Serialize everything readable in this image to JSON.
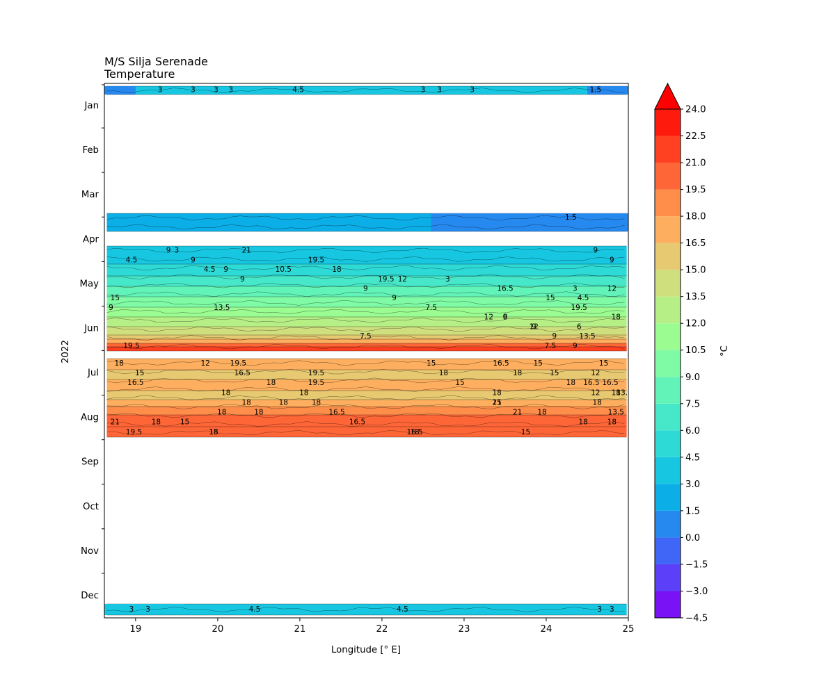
{
  "chart_data": {
    "type": "heatmap",
    "title": "M/S Silja Serenade",
    "subtitle": "Temperature",
    "xlabel": "Longitude [° E]",
    "ylabel": "2022",
    "xlim": [
      18.62,
      25.0
    ],
    "x_ticks": [
      "19",
      "20",
      "21",
      "22",
      "23",
      "24",
      "25"
    ],
    "x_tick_values": [
      19,
      20,
      21,
      22,
      23,
      24,
      25
    ],
    "y_ticks": [
      "Jan",
      "Feb",
      "Mar",
      "Apr",
      "May",
      "Jun",
      "Jul",
      "Aug",
      "Sep",
      "Oct",
      "Nov",
      "Dec"
    ],
    "y_axis": "month of year, January at top",
    "colorbar": {
      "label": "°C",
      "ticks": [
        "−4.5",
        "−3.0",
        "−1.5",
        "0.0",
        "1.5",
        "3.0",
        "4.5",
        "6.0",
        "7.5",
        "9.0",
        "10.5",
        "12.0",
        "13.5",
        "15.0",
        "16.5",
        "18.0",
        "19.5",
        "21.0",
        "22.5",
        "24.0"
      ],
      "levels": [
        -4.5,
        -3.0,
        -1.5,
        0.0,
        1.5,
        3.0,
        4.5,
        6.0,
        7.5,
        9.0,
        10.5,
        12.0,
        13.5,
        15.0,
        16.5,
        18.0,
        19.5,
        21.0,
        22.5,
        24.0
      ],
      "colors": [
        "#7a12f6",
        "#5c3ff8",
        "#4066f8",
        "#2689ef",
        "#0caee7",
        "#17c7e1",
        "#2edad6",
        "#47e8c9",
        "#62f3b8",
        "#7efba4",
        "#9bfc92",
        "#b6ef86",
        "#d0df7e",
        "#e7c971",
        "#fdaf5f",
        "#ff8e4b",
        "#ff6637",
        "#ff4122",
        "#ff1a0e"
      ],
      "extend": "max",
      "extend_color": "#ff0000"
    },
    "bands": [
      {
        "period": "early January",
        "range_c": [
          1.5,
          4.5
        ],
        "labels": [
          {
            "text": "3",
            "lon": 19.3
          },
          {
            "text": "3",
            "lon": 19.7
          },
          {
            "text": "3",
            "lon": 19.98
          },
          {
            "text": "3",
            "lon": 20.16
          },
          {
            "text": "4.5",
            "lon": 20.98
          },
          {
            "text": "3",
            "lon": 22.5
          },
          {
            "text": "3",
            "lon": 22.7
          },
          {
            "text": "3",
            "lon": 23.1
          },
          {
            "text": "1.5",
            "lon": 24.6
          }
        ]
      },
      {
        "period": "late March – early April",
        "range_c": [
          0.0,
          3.0
        ],
        "labels": [
          {
            "text": "1.5",
            "lon": 24.3
          }
        ]
      },
      {
        "period": "mid April – mid June",
        "range_c": [
          3.0,
          21.0
        ],
        "labels": [
          {
            "text": "3",
            "lon": 19.5
          },
          {
            "text": "4.5",
            "lon": 18.95
          },
          {
            "text": "4.5",
            "lon": 19.9
          },
          {
            "text": "3",
            "lon": 22.8
          },
          {
            "text": "3",
            "lon": 24.35
          },
          {
            "text": "4.5",
            "lon": 24.45
          },
          {
            "text": "9",
            "lon": 18.7
          },
          {
            "text": "6",
            "lon": 23.5
          },
          {
            "text": "6",
            "lon": 24.4
          },
          {
            "text": "7.5",
            "lon": 21.8
          },
          {
            "text": "7.5",
            "lon": 24.05
          },
          {
            "text": "9",
            "lon": 19.4
          },
          {
            "text": "9",
            "lon": 19.7
          },
          {
            "text": "9",
            "lon": 20.1
          },
          {
            "text": "9",
            "lon": 20.3
          },
          {
            "text": "9",
            "lon": 21.8
          },
          {
            "text": "9",
            "lon": 22.15
          },
          {
            "text": "7.5",
            "lon": 22.6
          },
          {
            "text": "9",
            "lon": 23.5
          },
          {
            "text": "9",
            "lon": 23.85
          },
          {
            "text": "9",
            "lon": 24.1
          },
          {
            "text": "9",
            "lon": 24.35
          },
          {
            "text": "9",
            "lon": 24.6
          },
          {
            "text": "9",
            "lon": 24.8
          },
          {
            "text": "10.5",
            "lon": 20.8
          },
          {
            "text": "12",
            "lon": 22.25
          },
          {
            "text": "12",
            "lon": 24.8
          },
          {
            "text": "15",
            "lon": 18.75
          },
          {
            "text": "13.5",
            "lon": 20.05
          },
          {
            "text": "12",
            "lon": 23.3
          },
          {
            "text": "12",
            "lon": 23.85
          },
          {
            "text": "13.5",
            "lon": 24.5
          },
          {
            "text": "19.5",
            "lon": 18.95
          },
          {
            "text": "21",
            "lon": 20.35
          },
          {
            "text": "19.5",
            "lon": 21.2
          },
          {
            "text": "18",
            "lon": 21.45
          },
          {
            "text": "19.5",
            "lon": 22.05
          },
          {
            "text": "16.5",
            "lon": 23.5
          },
          {
            "text": "15",
            "lon": 24.05
          },
          {
            "text": "19.5",
            "lon": 24.4
          },
          {
            "text": "18",
            "lon": 24.85
          }
        ]
      },
      {
        "period": "late June – mid August",
        "range_c": [
          12.0,
          22.5
        ],
        "labels": [
          {
            "text": "18",
            "lon": 18.8
          },
          {
            "text": "15",
            "lon": 19.05
          },
          {
            "text": "16.5",
            "lon": 19.0
          },
          {
            "text": "18",
            "lon": 20.1
          },
          {
            "text": "18",
            "lon": 20.35
          },
          {
            "text": "18",
            "lon": 20.5
          },
          {
            "text": "15",
            "lon": 19.6
          },
          {
            "text": "15",
            "lon": 19.95
          },
          {
            "text": "12",
            "lon": 19.85
          },
          {
            "text": "16.5",
            "lon": 20.3
          },
          {
            "text": "18",
            "lon": 20.65
          },
          {
            "text": "18",
            "lon": 21.05
          },
          {
            "text": "18",
            "lon": 21.2
          },
          {
            "text": "16.5",
            "lon": 21.45
          },
          {
            "text": "16.5",
            "lon": 21.7
          },
          {
            "text": "18",
            "lon": 22.4
          },
          {
            "text": "15",
            "lon": 22.6
          },
          {
            "text": "18",
            "lon": 22.75
          },
          {
            "text": "15",
            "lon": 22.95
          },
          {
            "text": "18",
            "lon": 23.4
          },
          {
            "text": "15",
            "lon": 23.4
          },
          {
            "text": "18",
            "lon": 23.95
          },
          {
            "text": "18",
            "lon": 24.45
          },
          {
            "text": "15",
            "lon": 23.75
          },
          {
            "text": "15",
            "lon": 23.9
          },
          {
            "text": "15",
            "lon": 24.1
          },
          {
            "text": "18",
            "lon": 24.3
          },
          {
            "text": "12",
            "lon": 24.6
          },
          {
            "text": "18",
            "lon": 24.62
          },
          {
            "text": "13.5",
            "lon": 24.85
          },
          {
            "text": "18",
            "lon": 24.8
          },
          {
            "text": "16.5",
            "lon": 22.4
          },
          {
            "text": "16.5",
            "lon": 23.45
          },
          {
            "text": "18",
            "lon": 23.65
          },
          {
            "text": "16.5",
            "lon": 24.55
          },
          {
            "text": "18",
            "lon": 24.85
          },
          {
            "text": "18",
            "lon": 20.8
          },
          {
            "text": "18",
            "lon": 20.05
          },
          {
            "text": "21",
            "lon": 18.75
          },
          {
            "text": "19.5",
            "lon": 18.98
          },
          {
            "text": "15",
            "lon": 24.7
          },
          {
            "text": "12",
            "lon": 24.6
          },
          {
            "text": "16.5",
            "lon": 24.78
          },
          {
            "text": "13.5",
            "lon": 24.95
          },
          {
            "text": "21",
            "lon": 23.4
          },
          {
            "text": "21",
            "lon": 23.65
          },
          {
            "text": "18",
            "lon": 19.25
          },
          {
            "text": "18",
            "lon": 19.95
          },
          {
            "text": "19.5",
            "lon": 20.25
          },
          {
            "text": "19.5",
            "lon": 21.2
          },
          {
            "text": "19.5",
            "lon": 21.2
          }
        ]
      },
      {
        "period": "December",
        "range_c": [
          1.5,
          6.0
        ],
        "labels": [
          {
            "text": "3",
            "lon": 18.95
          },
          {
            "text": "3",
            "lon": 19.15
          },
          {
            "text": "4.5",
            "lon": 20.45
          },
          {
            "text": "4.5",
            "lon": 22.25
          },
          {
            "text": "3",
            "lon": 24.65
          },
          {
            "text": "3",
            "lon": 24.8
          }
        ]
      }
    ]
  }
}
